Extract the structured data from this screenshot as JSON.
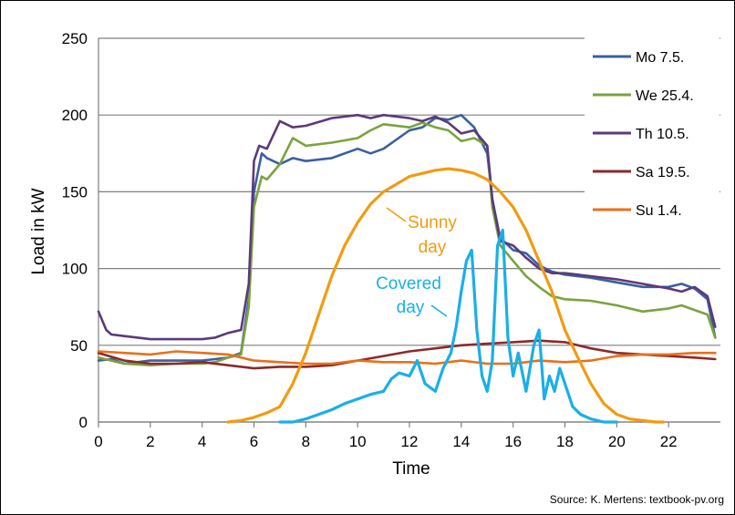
{
  "chart_data": {
    "type": "line",
    "title": "",
    "xlabel": "Time",
    "ylabel": "Load in kW",
    "xlim": [
      0,
      24
    ],
    "ylim": [
      0,
      250
    ],
    "xticks": [
      "0",
      "2",
      "4",
      "6",
      "8",
      "10",
      "12",
      "14",
      "16",
      "18",
      "20",
      "22"
    ],
    "yticks": [
      "0",
      "50",
      "100",
      "150",
      "200",
      "250"
    ],
    "grid": "horizontal",
    "legend_position": "top-right",
    "source": "Source: K. Mertens: textbook-pv.org",
    "annotations": [
      {
        "text": "Sunny",
        "color": "#F29B12"
      },
      {
        "text": "day",
        "color": "#F29B12"
      },
      {
        "text": "Covered",
        "color": "#1AAFE6"
      },
      {
        "text": "day",
        "color": "#1AAFE6"
      }
    ],
    "series": [
      {
        "name": "Mo 7.5.",
        "color": "#3D5FA0",
        "legend": true,
        "x": [
          0,
          0.5,
          1,
          2,
          3,
          4,
          4.5,
          5,
          5.5,
          5.8,
          6,
          6.3,
          6.5,
          7,
          7.5,
          8,
          9,
          10,
          10.5,
          11,
          12,
          12.5,
          13,
          13.5,
          14,
          14.5,
          15,
          15.2,
          15.5,
          16,
          16.5,
          17,
          17.5,
          18,
          19,
          20,
          21,
          22,
          22.5,
          23,
          23.5,
          23.8
        ],
        "y": [
          40,
          41,
          38,
          40,
          40,
          40,
          41,
          42,
          45,
          80,
          150,
          175,
          172,
          168,
          172,
          170,
          172,
          178,
          175,
          178,
          190,
          192,
          198,
          197,
          200,
          192,
          175,
          145,
          120,
          112,
          110,
          102,
          98,
          96,
          94,
          91,
          88,
          88,
          90,
          87,
          80,
          55
        ]
      },
      {
        "name": "We 25.4.",
        "color": "#7BA33E",
        "legend": true,
        "x": [
          0,
          0.5,
          1,
          2,
          3,
          4,
          4.5,
          5,
          5.5,
          5.8,
          6,
          6.3,
          6.5,
          7,
          7.5,
          8,
          9,
          10,
          10.5,
          11,
          12,
          12.5,
          13,
          13.5,
          14,
          14.5,
          15,
          15.2,
          15.5,
          16,
          16.5,
          17,
          17.5,
          18,
          19,
          20,
          21,
          22,
          22.5,
          23,
          23.5,
          23.8
        ],
        "y": [
          42,
          40,
          38,
          37,
          38,
          38,
          39,
          42,
          44,
          75,
          140,
          160,
          158,
          168,
          185,
          180,
          182,
          185,
          190,
          194,
          192,
          195,
          192,
          190,
          183,
          185,
          180,
          140,
          115,
          105,
          95,
          88,
          82,
          80,
          79,
          76,
          72,
          74,
          76,
          73,
          70,
          55
        ]
      },
      {
        "name": "Th 10.5.",
        "color": "#5B3A7A",
        "legend": true,
        "x": [
          0,
          0.3,
          0.5,
          1,
          2,
          3,
          4,
          4.5,
          5,
          5.5,
          5.8,
          6,
          6.2,
          6.5,
          7,
          7.5,
          8,
          9,
          10,
          10.5,
          11,
          12,
          12.5,
          13,
          13.5,
          14,
          14.5,
          15,
          15.2,
          15.5,
          16,
          16.5,
          17,
          17.5,
          18,
          19,
          20,
          21,
          22,
          22.5,
          23,
          23.5,
          23.8
        ],
        "y": [
          72,
          60,
          57,
          56,
          54,
          54,
          54,
          55,
          58,
          60,
          90,
          170,
          180,
          178,
          196,
          192,
          193,
          198,
          200,
          198,
          200,
          198,
          196,
          199,
          195,
          188,
          190,
          180,
          145,
          118,
          115,
          107,
          100,
          97,
          97,
          95,
          93,
          90,
          87,
          85,
          88,
          82,
          62
        ]
      },
      {
        "name": "Sa 19.5.",
        "color": "#8B2A2A",
        "legend": true,
        "x": [
          0,
          1,
          2,
          3,
          4,
          5,
          6,
          7,
          8,
          9,
          10,
          11,
          12,
          13,
          14,
          15,
          16,
          17,
          18,
          19,
          20,
          21,
          22,
          23,
          23.8
        ],
        "y": [
          45,
          40,
          38,
          38,
          39,
          37,
          35,
          36,
          36,
          37,
          40,
          43,
          46,
          48,
          50,
          51,
          52,
          53,
          52,
          48,
          45,
          44,
          43,
          42,
          41
        ]
      },
      {
        "name": "Su 1.4.",
        "color": "#E8701A",
        "legend": true,
        "x": [
          0,
          1,
          2,
          3,
          4,
          5,
          6,
          7,
          8,
          9,
          10,
          11,
          12,
          13,
          14,
          15,
          16,
          17,
          18,
          19,
          20,
          21,
          22,
          23,
          23.8
        ],
        "y": [
          46,
          45,
          44,
          46,
          45,
          44,
          40,
          39,
          38,
          38,
          40,
          39,
          39,
          38,
          40,
          38,
          38,
          40,
          39,
          40,
          43,
          44,
          44,
          45,
          45
        ]
      },
      {
        "name": "",
        "color": "#F29B12",
        "legend": false,
        "x": [
          5,
          5.5,
          6,
          6.5,
          7,
          7.5,
          8,
          8.5,
          9,
          9.5,
          10,
          10.5,
          11,
          11.5,
          12,
          12.5,
          13,
          13.5,
          14,
          14.5,
          15,
          15.5,
          16,
          16.5,
          17,
          17.5,
          18,
          18.5,
          19,
          19.5,
          20,
          20.5,
          21,
          21.5,
          21.8
        ],
        "y": [
          0,
          1,
          3,
          6,
          10,
          25,
          45,
          70,
          95,
          115,
          130,
          142,
          150,
          155,
          160,
          162,
          164,
          165,
          164,
          162,
          158,
          150,
          140,
          125,
          105,
          85,
          60,
          42,
          25,
          12,
          5,
          2,
          1,
          0,
          0
        ]
      },
      {
        "name": "",
        "color": "#1AAFE6",
        "legend": false,
        "x": [
          7,
          7.5,
          8,
          8.5,
          9,
          9.5,
          10,
          10.5,
          11,
          11.3,
          11.6,
          12,
          12.3,
          12.6,
          13,
          13.3,
          13.6,
          13.8,
          14,
          14.2,
          14.4,
          14.6,
          14.8,
          15,
          15.2,
          15.4,
          15.6,
          15.8,
          16,
          16.2,
          16.5,
          16.8,
          17,
          17.2,
          17.4,
          17.6,
          17.8,
          18,
          18.3,
          18.6,
          19,
          19.5,
          20
        ],
        "y": [
          0,
          0,
          2,
          5,
          8,
          12,
          15,
          18,
          20,
          28,
          32,
          30,
          40,
          25,
          20,
          35,
          45,
          62,
          85,
          105,
          112,
          60,
          30,
          20,
          40,
          115,
          125,
          55,
          30,
          45,
          20,
          50,
          60,
          15,
          30,
          20,
          35,
          25,
          10,
          5,
          2,
          0,
          0
        ]
      }
    ]
  }
}
